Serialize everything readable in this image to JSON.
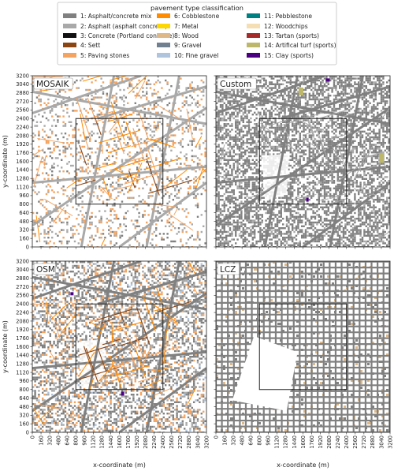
{
  "legend": {
    "title": "pavement type classification",
    "items": [
      {
        "label": "1: Asphalt/concrete mix",
        "color": "#808080"
      },
      {
        "label": "2: Asphalt (asphalt concrete)",
        "color": "#a9a9a9"
      },
      {
        "label": "3: Concrete (Portland concrete)",
        "color": "#111111"
      },
      {
        "label": "4: Sett",
        "color": "#8b4513"
      },
      {
        "label": "5: Paving stones",
        "color": "#f4a460"
      },
      {
        "label": "6: Cobblestone",
        "color": "#ff8c00"
      },
      {
        "label": "7: Metal",
        "color": "#ffd700"
      },
      {
        "label": "8: Wood",
        "color": "#deb887"
      },
      {
        "label": "9: Gravel",
        "color": "#708090"
      },
      {
        "label": "10: Fine gravel",
        "color": "#b0c4de"
      },
      {
        "label": "11: Pebblestone",
        "color": "#008080"
      },
      {
        "label": "12: Woodchips",
        "color": "#f5deb3"
      },
      {
        "label": "13: Tartan (sports)",
        "color": "#a52a2a"
      },
      {
        "label": "14: Artifical turf (sports)",
        "color": "#bdb76b"
      },
      {
        "label": "15: Clay (sports)",
        "color": "#4b0082"
      }
    ]
  },
  "chart_data": [
    {
      "type": "heatmap",
      "title": "MOSAIK",
      "xlabel": "",
      "ylabel": "y-coordinate (m)",
      "xlim": [
        0,
        3200
      ],
      "ylim": [
        0,
        3200
      ],
      "inner_box": {
        "x": [
          800,
          2400
        ],
        "y": [
          800,
          2400
        ]
      }
    },
    {
      "type": "heatmap",
      "title": "Custom",
      "xlabel": "",
      "ylabel": "",
      "xlim": [
        0,
        3200
      ],
      "ylim": [
        0,
        3200
      ],
      "inner_box": {
        "x": [
          800,
          2400
        ],
        "y": [
          800,
          2400
        ]
      }
    },
    {
      "type": "heatmap",
      "title": "OSM",
      "xlabel": "x-coordinate (m)",
      "ylabel": "y-coordinate (m)",
      "xlim": [
        0,
        3200
      ],
      "ylim": [
        0,
        3200
      ],
      "inner_box": {
        "x": [
          800,
          2400
        ],
        "y": [
          800,
          2400
        ]
      }
    },
    {
      "type": "heatmap",
      "title": "LCZ",
      "xlabel": "x-coordinate (m)",
      "ylabel": "",
      "xlim": [
        0,
        3200
      ],
      "ylim": [
        0,
        3200
      ],
      "inner_box": {
        "x": [
          800,
          2400
        ],
        "y": [
          800,
          2400
        ]
      }
    }
  ],
  "ticks": [
    "0",
    "160",
    "320",
    "480",
    "640",
    "800",
    "960",
    "1120",
    "1280",
    "1440",
    "1600",
    "1760",
    "1920",
    "2080",
    "2240",
    "2400",
    "2560",
    "2720",
    "2880",
    "3040",
    "3200"
  ]
}
